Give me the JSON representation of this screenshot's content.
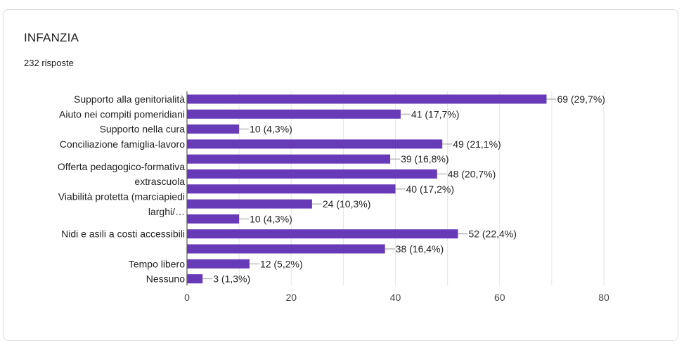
{
  "card": {
    "title": "INFANZIA",
    "subtitle": "232 risposte"
  },
  "colors": {
    "bar": "#673ab7",
    "grid": "#e6e6e6",
    "axis": "#333333",
    "leader": "#999999"
  },
  "chart_data": {
    "type": "bar",
    "orientation": "horizontal",
    "title": "INFANZIA",
    "xlim": [
      0,
      80
    ],
    "ticks": [
      0,
      20,
      40,
      60,
      80
    ],
    "grid": true,
    "bars": [
      {
        "value": 69,
        "label": "69 (29,7%)"
      },
      {
        "value": 41,
        "label": "41 (17,7%)"
      },
      {
        "value": 10,
        "label": "10 (4,3%)"
      },
      {
        "value": 49,
        "label": "49 (21,1%)"
      },
      {
        "value": 39,
        "label": "39 (16,8%)"
      },
      {
        "value": 48,
        "label": "48 (20,7%)"
      },
      {
        "value": 40,
        "label": "40 (17,2%)"
      },
      {
        "value": 24,
        "label": "24 (10,3%)"
      },
      {
        "value": 10,
        "label": "10 (4,3%)"
      },
      {
        "value": 52,
        "label": "52 (22,4%)"
      },
      {
        "value": 38,
        "label": "38 (16,4%)"
      },
      {
        "value": 12,
        "label": "12 (5,2%)"
      },
      {
        "value": 3,
        "label": "3 (1,3%)"
      }
    ],
    "category_labels": [
      {
        "text": "Supporto alla genitorialità",
        "row": 0
      },
      {
        "text": "Aiuto nei compiti pomeridiani",
        "row": 1
      },
      {
        "text": "Supporto nella cura",
        "row": 2
      },
      {
        "text": "Conciliazione famiglia-lavoro",
        "row": 3
      },
      {
        "text": "Offerta pedagogico-formativa",
        "row": 4.5
      },
      {
        "text": "extrascuola",
        "row": 5.5
      },
      {
        "text": "Viabilità protetta (marciapiedi",
        "row": 6.5
      },
      {
        "text": "larghi/…",
        "row": 7.5
      },
      {
        "text": "Nidi e asili a costi accessibili",
        "row": 9
      },
      {
        "text": "Tempo libero",
        "row": 11
      },
      {
        "text": "Nessuno",
        "row": 12
      }
    ]
  }
}
